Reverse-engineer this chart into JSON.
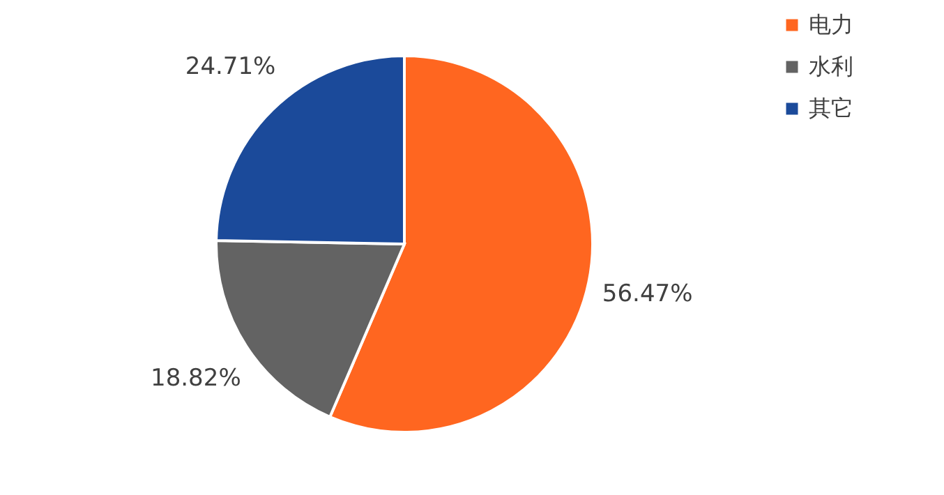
{
  "chart_data": {
    "type": "pie",
    "categories": [
      "电力",
      "水利",
      "其它"
    ],
    "values": [
      56.47,
      18.82,
      24.71
    ],
    "colors": [
      "#ff6620",
      "#636363",
      "#1b4a9a"
    ],
    "value_labels": [
      "56.47%",
      "18.82%",
      "24.71%"
    ],
    "legend": "right"
  }
}
